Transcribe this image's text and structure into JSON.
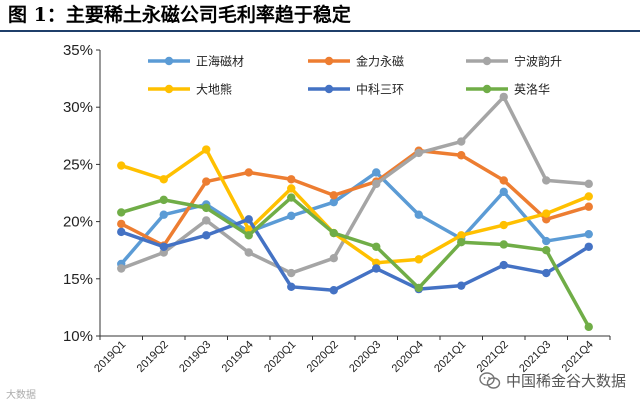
{
  "figure": {
    "title": "图 1：主要稀土永磁公司毛利率趋于稳定"
  },
  "watermark": {
    "left_text": "大数据",
    "right_text": "中国稀金谷大数据"
  },
  "chart_data": {
    "type": "line",
    "categories": [
      "2019Q1",
      "2019Q2",
      "2019Q3",
      "2019Q4",
      "2020Q1",
      "2020Q2",
      "2020Q3",
      "2020Q4",
      "2021Q1",
      "2021Q2",
      "2021Q3",
      "2021Q4"
    ],
    "y_ticks": [
      "10%",
      "15%",
      "20%",
      "25%",
      "30%",
      "35%"
    ],
    "ylim": [
      10,
      35
    ],
    "y_unit": "%",
    "grid": false,
    "legend_position": "top",
    "series": [
      {
        "name": "正海磁材",
        "color": "#5b9bd5",
        "values": [
          16.3,
          20.6,
          21.5,
          19.1,
          20.5,
          21.7,
          24.3,
          20.6,
          18.5,
          22.6,
          18.3,
          18.9
        ]
      },
      {
        "name": "金力永磁",
        "color": "#ed7d31",
        "values": [
          19.8,
          17.9,
          23.5,
          24.3,
          23.7,
          22.3,
          23.5,
          26.2,
          25.8,
          23.6,
          20.2,
          21.3
        ]
      },
      {
        "name": "宁波韵升",
        "color": "#a5a5a5",
        "values": [
          15.9,
          17.3,
          20.1,
          17.3,
          15.5,
          16.8,
          23.3,
          26.0,
          27.0,
          30.9,
          23.6,
          23.3
        ]
      },
      {
        "name": "大地熊",
        "color": "#ffc000",
        "values": [
          24.9,
          23.7,
          26.3,
          19.3,
          22.9,
          19.0,
          16.4,
          16.7,
          18.8,
          19.7,
          20.7,
          22.2
        ]
      },
      {
        "name": "中科三环",
        "color": "#4472c4",
        "values": [
          19.1,
          17.8,
          18.8,
          20.2,
          14.3,
          14.0,
          15.9,
          14.1,
          14.4,
          16.2,
          15.5,
          17.8
        ]
      },
      {
        "name": "英洛华",
        "color": "#70ad47",
        "values": [
          20.8,
          21.9,
          21.2,
          18.8,
          22.1,
          19.0,
          17.8,
          14.2,
          18.2,
          18.0,
          17.5,
          10.8
        ]
      }
    ]
  }
}
